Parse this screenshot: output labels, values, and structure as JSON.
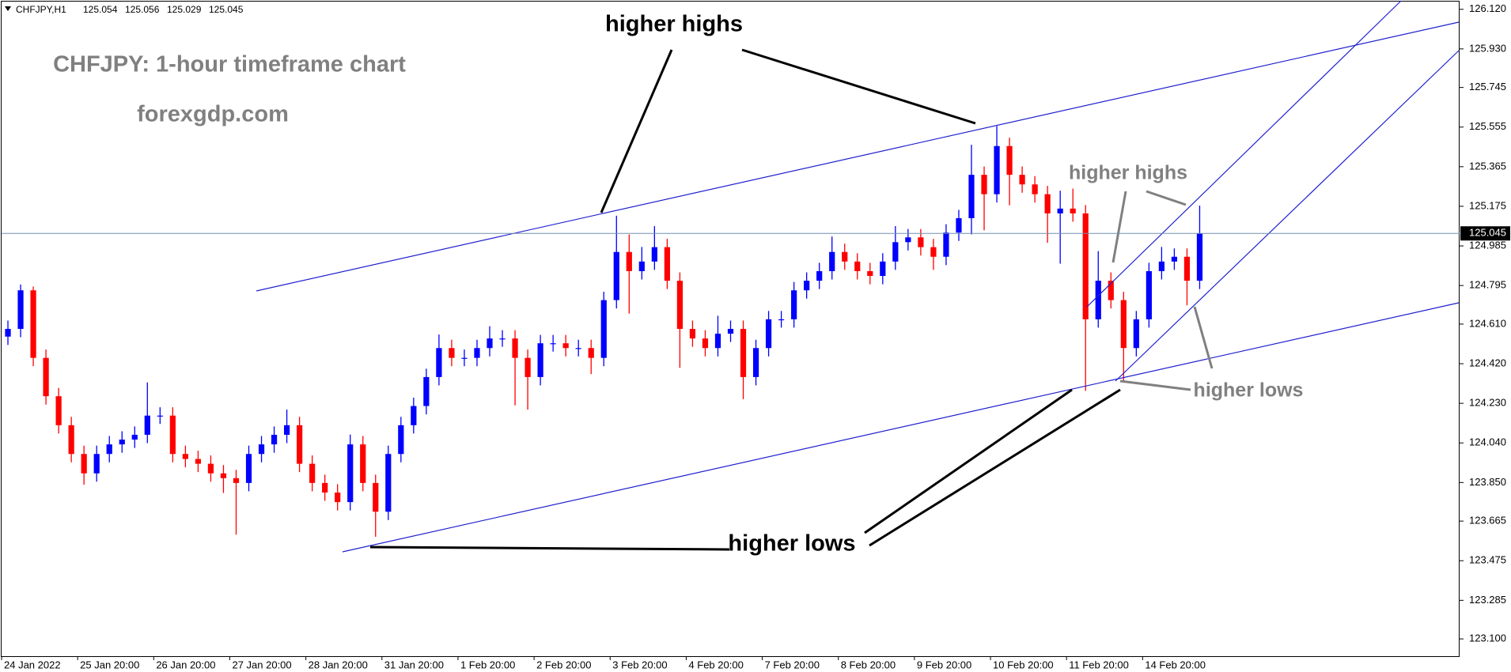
{
  "chart_data": {
    "type": "candlestick",
    "symbol": "CHFJPY,H1",
    "header_prices": [
      125.054,
      125.056,
      125.029,
      125.045
    ],
    "title": "CHFJPY: 1-hour timeframe chart",
    "subtitle": "forexgdp.com",
    "annotations": [
      "higher highs",
      "higher lows",
      "higher highs",
      "higher lows"
    ],
    "current_price": 125.045,
    "up_color": "#0000ff",
    "down_color": "#ff0000",
    "xlim": [
      0,
      115
    ],
    "xticks": [
      {
        "value": 0,
        "label": "24 Jan 2022"
      },
      {
        "value": 6,
        "label": "25 Jan 20:00"
      },
      {
        "value": 12,
        "label": "26 Jan 20:00"
      },
      {
        "value": 18,
        "label": "27 Jan 20:00"
      },
      {
        "value": 24,
        "label": "28 Jan 20:00"
      },
      {
        "value": 30,
        "label": "31 Jan 20:00"
      },
      {
        "value": 36,
        "label": "1 Feb 20:00"
      },
      {
        "value": 42,
        "label": "2 Feb 20:00"
      },
      {
        "value": 48,
        "label": "3 Feb 20:00"
      },
      {
        "value": 54,
        "label": "4 Feb 20:00"
      },
      {
        "value": 60,
        "label": "7 Feb 20:00"
      },
      {
        "value": 66,
        "label": "8 Feb 20:00"
      },
      {
        "value": 72,
        "label": "9 Feb 20:00"
      },
      {
        "value": 78,
        "label": "10 Feb 20:00"
      },
      {
        "value": 84,
        "label": "11 Feb 20:00"
      },
      {
        "value": 90,
        "label": "14 Feb 20:00"
      }
    ],
    "ylim": [
      123.017,
      126.157
    ],
    "yticks": [
      {
        "value": 126.12,
        "label": "126.120"
      },
      {
        "value": 125.93,
        "label": "125.930"
      },
      125.745,
      125.555,
      125.365,
      125.175,
      124.985,
      124.795,
      {
        "value": 124.61,
        "label": "124.610"
      },
      {
        "value": 124.42,
        "label": "124.420"
      },
      {
        "value": 124.23,
        "label": "124.230"
      },
      {
        "value": 124.04,
        "label": "124.040"
      },
      {
        "value": 123.85,
        "label": "123.850"
      },
      123.665,
      123.475,
      123.285,
      {
        "value": 123.1,
        "label": "123.100"
      }
    ],
    "open": [
      124.55,
      124.587,
      124.772,
      124.448,
      124.264,
      124.125,
      123.987,
      123.894,
      123.987,
      124.033,
      124.056,
      124.079,
      124.171,
      124.171,
      123.987,
      123.963,
      123.94,
      123.894,
      123.871,
      123.848,
      123.987,
      124.033,
      124.079,
      124.125,
      123.94,
      123.848,
      123.802,
      123.756,
      124.033,
      123.848,
      123.71,
      123.987,
      124.125,
      124.217,
      124.356,
      124.495,
      124.448,
      124.448,
      124.495,
      124.541,
      124.541,
      124.448,
      124.356,
      124.518,
      124.518,
      124.495,
      124.495,
      124.448,
      124.725,
      124.956,
      124.864,
      124.91,
      124.979,
      124.818,
      124.587,
      124.541,
      124.495,
      124.564,
      124.587,
      124.356,
      124.495,
      124.633,
      124.633,
      124.772,
      124.818,
      124.864,
      124.956,
      124.91,
      124.864,
      124.841,
      124.91,
      125.003,
      125.026,
      124.979,
      124.933,
      125.049,
      125.118,
      125.326,
      125.233,
      125.464,
      125.326,
      125.28,
      125.233,
      125.141,
      125.164,
      125.141,
      124.633,
      124.818,
      124.725,
      124.495,
      124.633,
      124.864,
      124.91,
      124.933,
      124.818
    ],
    "high": [
      124.627,
      124.8,
      124.79,
      124.488,
      124.304,
      124.165,
      124.027,
      124.027,
      124.073,
      124.096,
      124.119,
      124.33,
      124.211,
      124.211,
      124.027,
      124.003,
      123.98,
      123.934,
      123.911,
      124.027,
      124.073,
      124.119,
      124.2,
      124.165,
      123.98,
      123.888,
      123.842,
      124.08,
      124.073,
      123.888,
      124.027,
      124.165,
      124.257,
      124.396,
      124.56,
      124.535,
      124.488,
      124.535,
      124.6,
      124.581,
      124.581,
      124.488,
      124.558,
      124.558,
      124.558,
      124.535,
      124.535,
      124.765,
      125.13,
      125.04,
      124.98,
      125.08,
      125.019,
      124.858,
      124.627,
      124.581,
      124.65,
      124.627,
      124.627,
      124.535,
      124.673,
      124.673,
      124.812,
      124.858,
      124.904,
      125.03,
      124.996,
      124.95,
      124.904,
      124.95,
      125.08,
      125.066,
      125.066,
      125.019,
      125.089,
      125.158,
      125.47,
      125.366,
      125.56,
      125.504,
      125.366,
      125.32,
      125.273,
      125.25,
      125.26,
      125.181,
      124.96,
      124.858,
      124.765,
      124.673,
      124.904,
      124.98,
      124.973,
      124.973,
      125.178
    ],
    "low": [
      124.51,
      124.547,
      124.408,
      124.224,
      124.085,
      123.947,
      123.84,
      123.854,
      123.947,
      123.993,
      124.016,
      124.039,
      124.131,
      123.947,
      123.923,
      123.9,
      123.854,
      123.8,
      123.6,
      123.808,
      123.947,
      123.993,
      124.039,
      123.9,
      123.808,
      123.762,
      123.716,
      123.716,
      123.808,
      123.59,
      123.67,
      123.947,
      124.085,
      124.177,
      124.316,
      124.408,
      124.408,
      124.408,
      124.455,
      124.501,
      124.22,
      124.2,
      124.316,
      124.478,
      124.455,
      124.455,
      124.37,
      124.408,
      124.685,
      124.66,
      124.824,
      124.87,
      124.778,
      124.4,
      124.501,
      124.455,
      124.455,
      124.524,
      124.25,
      124.316,
      124.455,
      124.593,
      124.593,
      124.732,
      124.778,
      124.824,
      124.87,
      124.824,
      124.801,
      124.801,
      124.87,
      124.963,
      124.939,
      124.87,
      124.893,
      125.009,
      125.04,
      125.06,
      125.193,
      125.18,
      125.24,
      125.193,
      125.0,
      124.9,
      125.101,
      124.29,
      124.593,
      124.685,
      124.33,
      124.455,
      124.593,
      124.824,
      124.87,
      124.7,
      124.778
    ],
    "close": [
      124.587,
      124.772,
      124.448,
      124.264,
      124.125,
      123.987,
      123.894,
      123.987,
      124.033,
      124.056,
      124.079,
      124.171,
      124.171,
      123.987,
      123.963,
      123.94,
      123.894,
      123.871,
      123.848,
      123.987,
      124.033,
      124.079,
      124.125,
      123.94,
      123.848,
      123.802,
      123.756,
      124.033,
      123.848,
      123.71,
      123.987,
      124.125,
      124.217,
      124.356,
      124.495,
      124.448,
      124.448,
      124.495,
      124.541,
      124.541,
      124.448,
      124.356,
      124.518,
      124.518,
      124.495,
      124.495,
      124.448,
      124.725,
      124.956,
      124.864,
      124.91,
      124.979,
      124.818,
      124.587,
      124.541,
      124.495,
      124.564,
      124.587,
      124.356,
      124.495,
      124.633,
      124.633,
      124.772,
      124.818,
      124.864,
      124.956,
      124.91,
      124.864,
      124.841,
      124.91,
      125.003,
      125.026,
      124.979,
      124.933,
      125.049,
      125.118,
      125.326,
      125.233,
      125.464,
      125.326,
      125.28,
      125.233,
      125.141,
      125.164,
      125.141,
      124.633,
      124.818,
      124.725,
      124.495,
      124.633,
      124.864,
      124.91,
      124.933,
      124.818,
      125.045
    ]
  }
}
